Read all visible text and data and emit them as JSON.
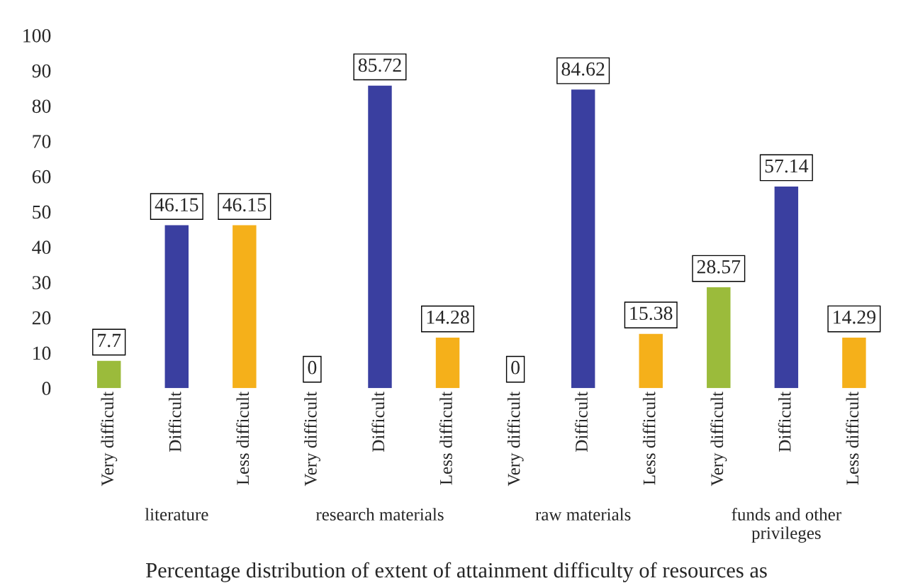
{
  "chart_data": {
    "type": "bar",
    "categories": [
      "Very difficult",
      "Difficult",
      "Less difficult",
      "Very difficult",
      "Difficult",
      "Less difficult",
      "Very difficult",
      "Difficult",
      "Less difficult",
      "Very difficult",
      "Difficult",
      "Less difficult"
    ],
    "values": [
      7.7,
      46.15,
      46.15,
      0,
      85.72,
      14.28,
      0,
      84.62,
      15.38,
      28.57,
      57.14,
      14.29
    ],
    "colors": [
      "#9bbb3b",
      "#3a3fa0",
      "#f5b01a",
      "#9bbb3b",
      "#3a3fa0",
      "#f5b01a",
      "#9bbb3b",
      "#3a3fa0",
      "#f5b01a",
      "#9bbb3b",
      "#3a3fa0",
      "#f5b01a"
    ],
    "ylim": [
      0,
      100
    ],
    "yticks": [
      0,
      10,
      20,
      30,
      40,
      50,
      60,
      70,
      80,
      90,
      100
    ],
    "grid": false,
    "data_labels": true,
    "annotations": [
      "literature",
      "research materials",
      "raw materials",
      "funds and other\nprivileges",
      "Percentage distribution of extent of attainment difficulty of resources as"
    ]
  }
}
